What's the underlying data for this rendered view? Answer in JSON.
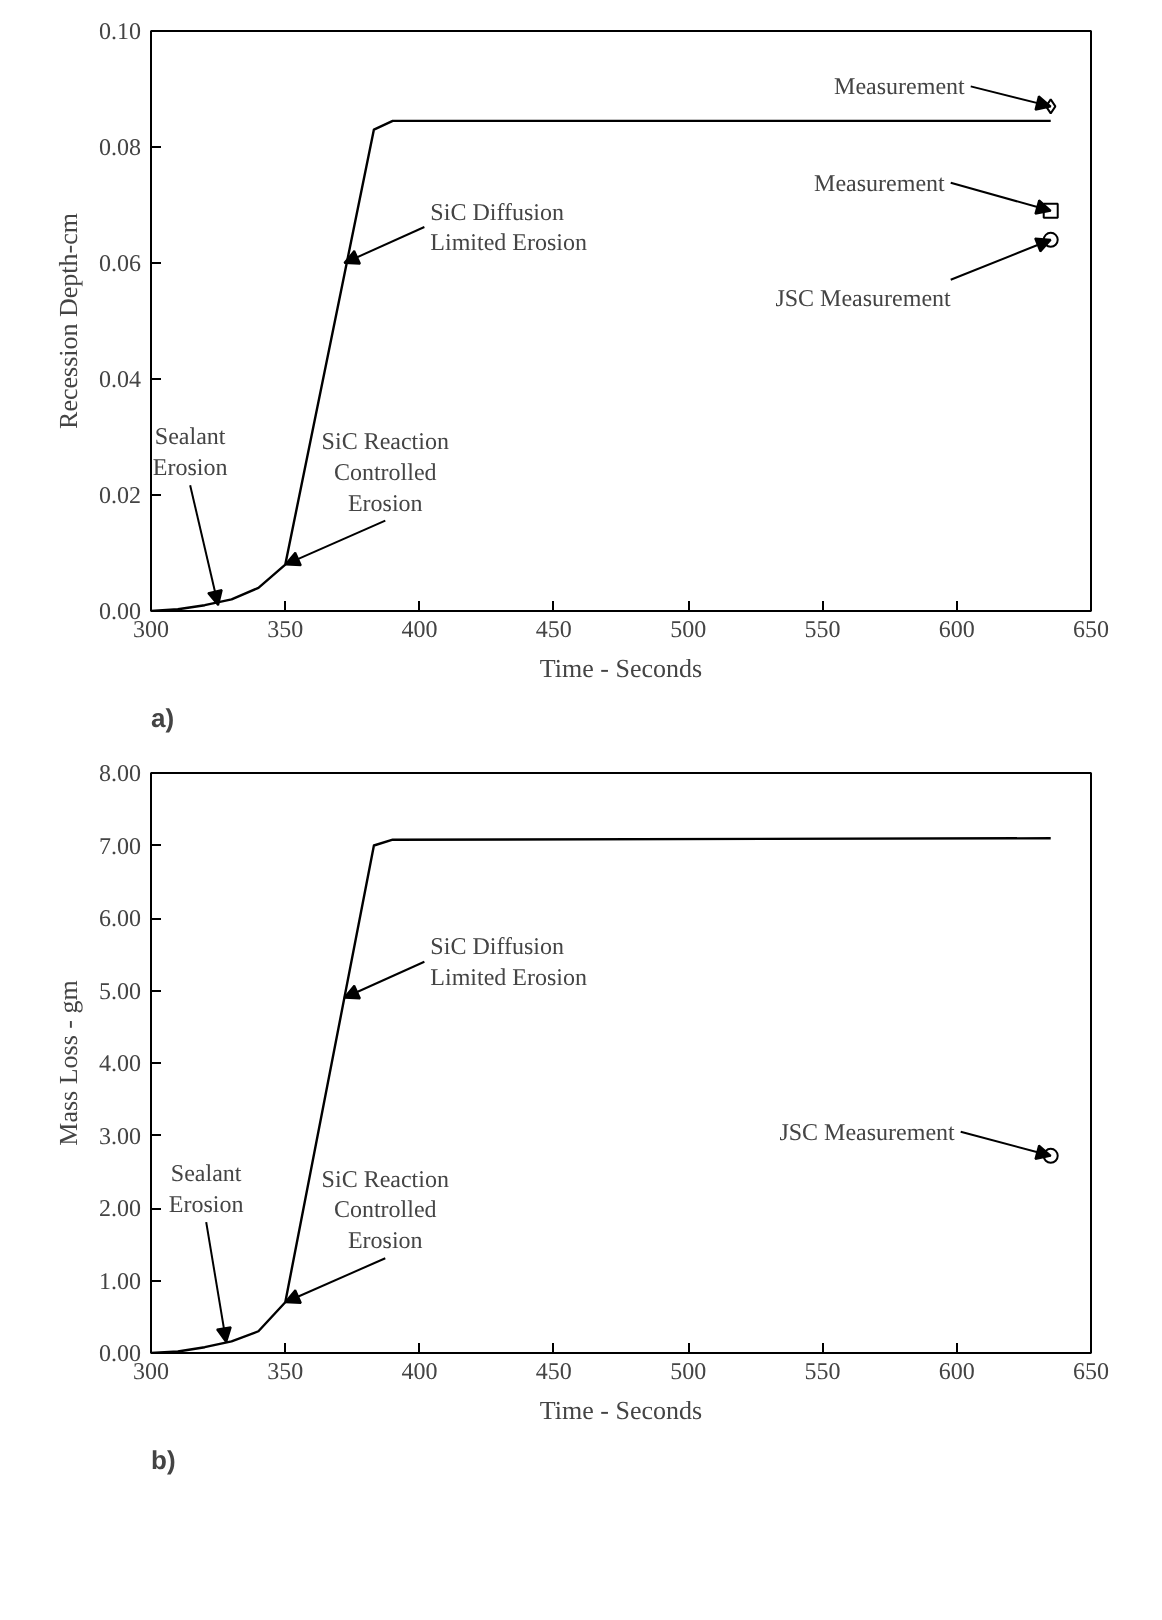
{
  "chart_data": [
    {
      "type": "line",
      "xlabel": "Time - Seconds",
      "ylabel": "Recession Depth-cm",
      "xlim": [
        300,
        650
      ],
      "ylim": [
        0,
        0.1
      ],
      "xticks": [
        300,
        350,
        400,
        450,
        500,
        550,
        600,
        650
      ],
      "yticks": [
        {
          "value": 0,
          "label": "0.00"
        },
        {
          "value": 0.02,
          "label": "0.02"
        },
        {
          "value": 0.04,
          "label": "0.04"
        },
        {
          "value": 0.06,
          "label": "0.06"
        },
        {
          "value": 0.08,
          "label": "0.08"
        },
        {
          "value": 0.1,
          "label": "0.10"
        }
      ],
      "grid": false,
      "series": [
        {
          "color": "#000000",
          "marker": "none",
          "x": [
            300,
            310,
            320,
            330,
            340,
            350,
            383,
            390,
            635
          ],
          "values": [
            0,
            0.0003,
            0.001,
            0.002,
            0.004,
            0.008,
            0.083,
            0.0845,
            0.0845
          ]
        },
        {
          "type": "scatter",
          "color": "#000000",
          "marker": "diamond",
          "x": [
            635
          ],
          "values": [
            0.087
          ]
        },
        {
          "type": "scatter",
          "color": "#000000",
          "marker": "square",
          "x": [
            635
          ],
          "values": [
            0.069
          ]
        },
        {
          "type": "scatter",
          "color": "#000000",
          "marker": "circle",
          "x": [
            635
          ],
          "values": [
            0.064
          ]
        }
      ],
      "annotations": [
        {
          "text": "Sealant\nErosion",
          "x": 325,
          "y": 0.001
        },
        {
          "text": "SiC Reaction\nControlled\nErosion",
          "x": 350,
          "y": 0.008
        },
        {
          "text": "SiC Diffusion\nLimited Erosion",
          "x": 372,
          "y": 0.06
        },
        {
          "text": "Measurement",
          "x": 635,
          "y": 0.087
        },
        {
          "text": "Measurement",
          "x": 635,
          "y": 0.069
        },
        {
          "text": "JSC Measurement",
          "x": 635,
          "y": 0.064
        },
        "a)"
      ]
    },
    {
      "type": "line",
      "xlabel": "Time - Seconds",
      "ylabel": "Mass Loss - gm",
      "xlim": [
        300,
        650
      ],
      "ylim": [
        0,
        8
      ],
      "xticks": [
        300,
        350,
        400,
        450,
        500,
        550,
        600,
        650
      ],
      "yticks": [
        {
          "value": 0,
          "label": "0.00"
        },
        {
          "value": 1,
          "label": "1.00"
        },
        {
          "value": 2,
          "label": "2.00"
        },
        {
          "value": 3,
          "label": "3.00"
        },
        {
          "value": 4,
          "label": "4.00"
        },
        {
          "value": 5,
          "label": "5.00"
        },
        {
          "value": 6,
          "label": "6.00"
        },
        {
          "value": 7,
          "label": "7.00"
        },
        {
          "value": 8,
          "label": "8.00"
        }
      ],
      "grid": false,
      "series": [
        {
          "color": "#000000",
          "marker": "none",
          "x": [
            300,
            310,
            320,
            330,
            340,
            350,
            383,
            390,
            635
          ],
          "values": [
            0,
            0.02,
            0.08,
            0.16,
            0.3,
            0.7,
            7.0,
            7.08,
            7.1
          ]
        },
        {
          "type": "scatter",
          "color": "#000000",
          "marker": "circle",
          "x": [
            635
          ],
          "values": [
            2.72
          ]
        }
      ],
      "annotations": [
        {
          "text": "Sealant\nErosion",
          "x": 328,
          "y": 0.15
        },
        {
          "text": "SiC Reaction\nControlled\nErosion",
          "x": 350,
          "y": 0.7
        },
        {
          "text": "SiC Diffusion\nLimited Erosion",
          "x": 372,
          "y": 4.9
        },
        {
          "text": "JSC Measurement",
          "x": 635,
          "y": 2.72
        },
        "b)"
      ]
    }
  ]
}
